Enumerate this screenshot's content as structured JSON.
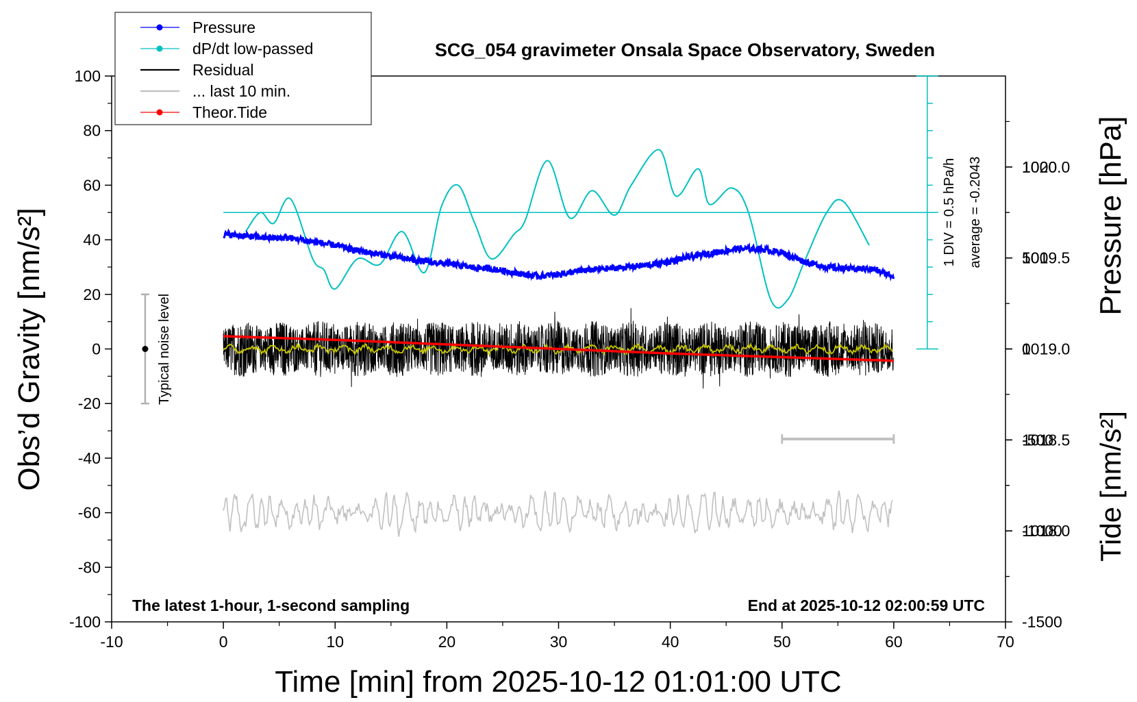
{
  "chart_data": {
    "type": "line",
    "title": "SCG_054 gravimeter Onsala Space Observatory, Sweden",
    "xlabel": "Time [min] from 2025-10-12 01:01:00 UTC",
    "ylabel": "Obs’d Gravity [nm/s²]",
    "ylabel_right_top": "Pressure [hPa]",
    "ylabel_right_bottom": "Tide [nm/s²]",
    "xlim": [
      -10,
      70
    ],
    "ylim": [
      -100,
      100
    ],
    "pressure_ylim": [
      1017.5,
      1020.5
    ],
    "tide_ylim": [
      -1500,
      1500
    ],
    "xticks": [
      "-10",
      "0",
      "10",
      "20",
      "30",
      "40",
      "50",
      "60",
      "70"
    ],
    "yticks": [
      "-100",
      "-80",
      "-60",
      "-40",
      "-20",
      "0",
      "20",
      "40",
      "60",
      "80",
      "100"
    ],
    "pressure_ticks": [
      "1018.0",
      "1018.5",
      "1019.0",
      "1019.5",
      "1020.0"
    ],
    "tide_ticks": [
      "-1500",
      "-1000",
      "-500",
      "0",
      "500",
      "1000"
    ],
    "legend_position": "top-left",
    "legend": [
      {
        "label": "Pressure",
        "color": "#0000ff",
        "marker": true
      },
      {
        "label": "dP/dt low-passed",
        "color": "#00c0c0",
        "marker": true
      },
      {
        "label": "Residual",
        "color": "#000000",
        "marker": false
      },
      {
        "label": "... last 10 min.",
        "color": "#c0c0c0",
        "marker": false
      },
      {
        "label": "Theor.Tide",
        "color": "#ff0000",
        "marker": true
      }
    ],
    "annotations": {
      "bottom_left": "The latest 1-hour, 1-second sampling",
      "bottom_right": "End at 2025-10-12 02:00:59 UTC",
      "noise_label": "Typical noise level",
      "scale_label": "1 DIV = 0.5 hPa/h",
      "average_label": "average = -0.2043"
    },
    "noise_bar": {
      "x": -7,
      "y_center": 0,
      "y_range": [
        -20,
        20
      ]
    },
    "last_10min_bar": {
      "x_range": [
        50,
        60
      ],
      "y": -33
    },
    "dpdt_scale": {
      "x": 63,
      "y_range": [
        0,
        100
      ],
      "divisions": 10,
      "baseline_y": 50
    },
    "series": [
      {
        "name": "Pressure",
        "color": "#0000ff",
        "axis": "pressure",
        "x": [
          0,
          2,
          4,
          6,
          8,
          10,
          12,
          14,
          16,
          18,
          20,
          22,
          24,
          26,
          28,
          30,
          32,
          34,
          36,
          38,
          40,
          42,
          44,
          46,
          48,
          50,
          52,
          54,
          56,
          58,
          60
        ],
        "values": [
          1019.63,
          1019.62,
          1019.61,
          1019.61,
          1019.59,
          1019.57,
          1019.54,
          1019.52,
          1019.5,
          1019.48,
          1019.47,
          1019.45,
          1019.44,
          1019.42,
          1019.4,
          1019.41,
          1019.43,
          1019.44,
          1019.45,
          1019.46,
          1019.48,
          1019.51,
          1019.53,
          1019.55,
          1019.55,
          1019.53,
          1019.48,
          1019.45,
          1019.44,
          1019.44,
          1019.4
        ]
      },
      {
        "name": "dP/dt low-passed",
        "color": "#00c0c0",
        "axis": "gravity",
        "x": [
          2,
          3.3,
          4.5,
          6,
          8,
          9,
          10,
          12,
          14,
          16,
          18,
          19.5,
          21,
          22.5,
          24,
          26,
          27,
          29,
          31,
          33,
          35,
          36.5,
          39,
          40.5,
          42.5,
          43.5,
          45.5,
          47,
          49,
          50.5,
          52,
          54,
          55.5,
          57.8
        ],
        "values": [
          43,
          50,
          46,
          55,
          33,
          29,
          22,
          33,
          31,
          43,
          28,
          52,
          60,
          46,
          33,
          42,
          47,
          69,
          48,
          58,
          49,
          60,
          73,
          56,
          66,
          53,
          59,
          50,
          18,
          18,
          32,
          50,
          54,
          38
        ]
      },
      {
        "name": "Residual",
        "color": "#000000",
        "axis": "gravity",
        "x": [
          0,
          60
        ],
        "values": [
          0,
          0
        ],
        "amplitude": 9
      },
      {
        "name": "Residual smoothed",
        "color": "#c8c800",
        "axis": "gravity",
        "x": [
          0,
          60
        ],
        "values": [
          0,
          0
        ],
        "amplitude": 2
      },
      {
        "name": "... last 10 min.",
        "color": "#c0c0c0",
        "axis": "gravity",
        "x_range": [
          0,
          60
        ],
        "center": -60,
        "amplitude": 7
      },
      {
        "name": "Theor.Tide",
        "color": "#ff0000",
        "axis": "tide",
        "x": [
          0,
          10,
          20,
          30,
          40,
          50,
          60
        ],
        "values": [
          70,
          50,
          25,
          0,
          -25,
          -45,
          -65
        ]
      }
    ]
  }
}
